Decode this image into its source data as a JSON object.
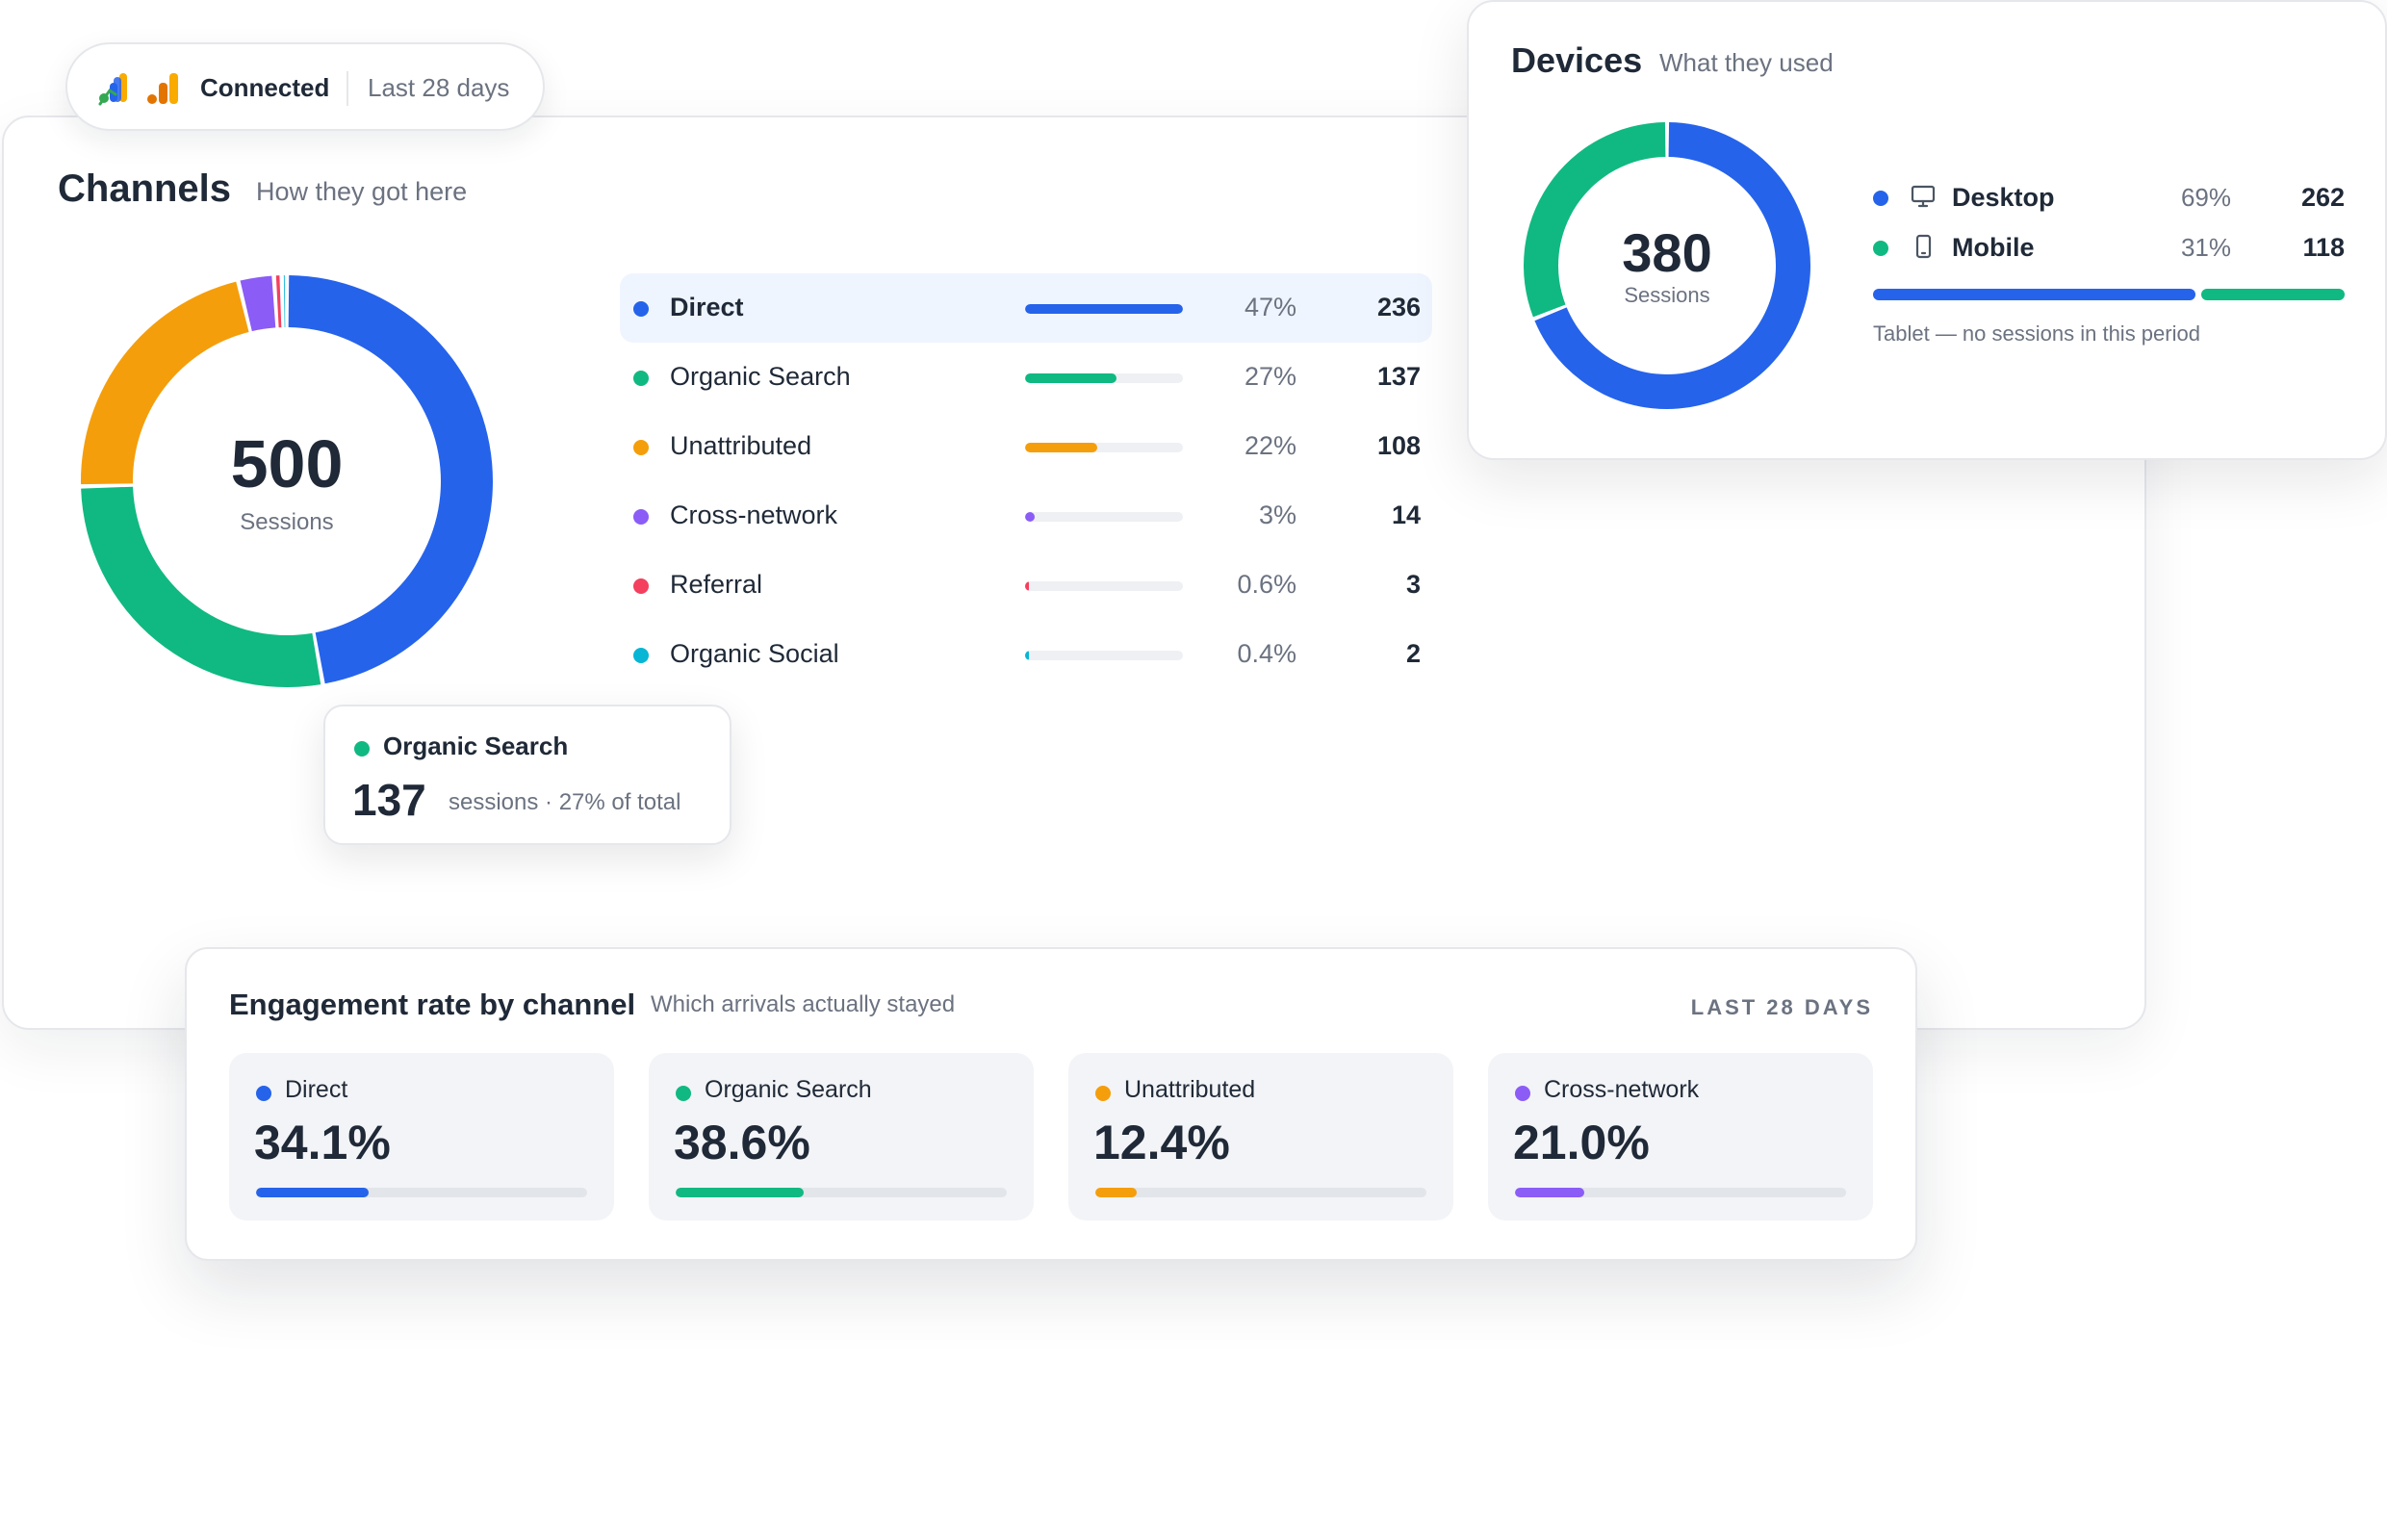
{
  "connection": {
    "status": "Connected",
    "period": "Last 28 days",
    "icons": [
      "analytics-icon",
      "bar-chart-icon"
    ]
  },
  "channels": {
    "title": "Channels",
    "subtitle": "How they got here",
    "total": "500",
    "total_label": "Sessions",
    "items": [
      {
        "name": "Direct",
        "pct": "47%",
        "count": "236",
        "value": 236,
        "color": "#2563eb"
      },
      {
        "name": "Organic Search",
        "pct": "27%",
        "count": "137",
        "value": 137,
        "color": "#10b981"
      },
      {
        "name": "Unattributed",
        "pct": "22%",
        "count": "108",
        "value": 108,
        "color": "#f59e0b"
      },
      {
        "name": "Cross-network",
        "pct": "3%",
        "count": "14",
        "value": 14,
        "color": "#8b5cf6"
      },
      {
        "name": "Referral",
        "pct": "0.6%",
        "count": "3",
        "value": 3,
        "color": "#f43f5e"
      },
      {
        "name": "Organic Social",
        "pct": "0.4%",
        "count": "2",
        "value": 2,
        "color": "#06b6d4"
      }
    ],
    "tooltip": {
      "name": "Organic Search",
      "value": "137",
      "detail": "sessions · 27% of total"
    }
  },
  "devices": {
    "title": "Devices",
    "subtitle": "What they used",
    "total": "380",
    "total_label": "Sessions",
    "items": [
      {
        "name": "Desktop",
        "pct": "69%",
        "count": "262",
        "value": 262,
        "color": "#2563eb",
        "icon": "monitor-icon"
      },
      {
        "name": "Mobile",
        "pct": "31%",
        "count": "118",
        "value": 118,
        "color": "#10b981",
        "icon": "smartphone-icon"
      }
    ],
    "note": "Tablet — no sessions in this period"
  },
  "engagement": {
    "title": "Engagement rate by channel",
    "subtitle": "Which arrivals actually stayed",
    "period": "LAST 28 DAYS",
    "items": [
      {
        "name": "Direct",
        "rate": "34.1%",
        "value": 34.1,
        "color": "#2563eb"
      },
      {
        "name": "Organic Search",
        "rate": "38.6%",
        "value": 38.6,
        "color": "#10b981"
      },
      {
        "name": "Unattributed",
        "rate": "12.4%",
        "value": 12.4,
        "color": "#f59e0b"
      },
      {
        "name": "Cross-network",
        "rate": "21.0%",
        "value": 21.0,
        "color": "#8b5cf6"
      }
    ]
  }
}
